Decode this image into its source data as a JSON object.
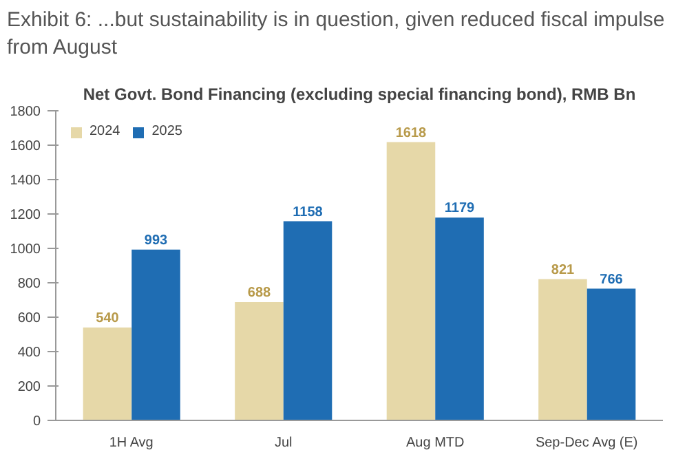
{
  "chart_data": {
    "type": "bar",
    "title": "Exhibit 6:    ...but sustainability is in question, given reduced fiscal impulse from August",
    "subtitle": "Net Govt. Bond Financing (excluding special financing bond), RMB Bn",
    "categories": [
      "1H Avg",
      "Jul",
      "Aug MTD",
      "Sep-Dec Avg (E)"
    ],
    "series": [
      {
        "name": "2024",
        "color": "#e6d8a8",
        "values": [
          540,
          688,
          1618,
          821
        ]
      },
      {
        "name": "2025",
        "color": "#1f6db3",
        "values": [
          993,
          1158,
          1179,
          766
        ]
      }
    ],
    "ylim": [
      0,
      1800
    ],
    "yticks": [
      0,
      200,
      400,
      600,
      800,
      1000,
      1200,
      1400,
      1600,
      1800
    ],
    "data_labels": true,
    "grid": false,
    "legend": "top left"
  }
}
